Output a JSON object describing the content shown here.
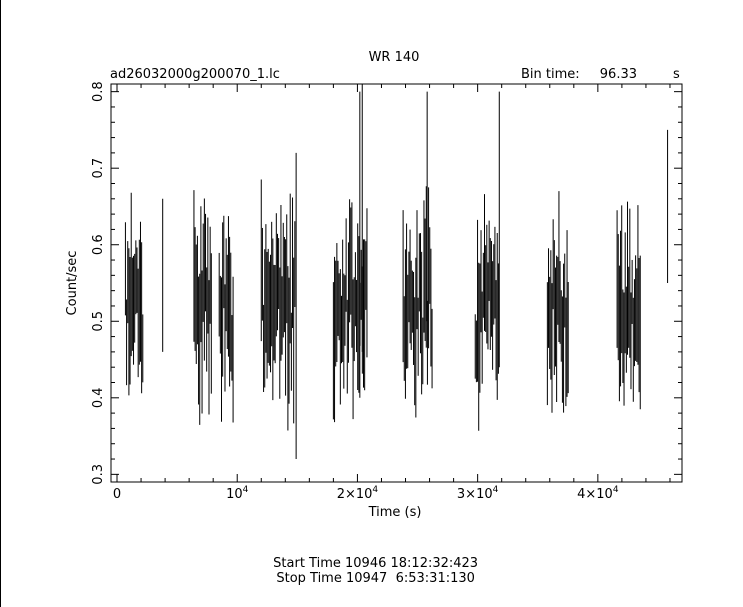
{
  "header": {
    "object": "WR 140",
    "filename": "ad26032000g200070_1.lc",
    "bin_label": "Bin time:",
    "bin_value": "96.33",
    "bin_unit": "s"
  },
  "footer": {
    "start": "Start Time 10946 18:12:32:423",
    "stop": "Stop Time 10947  6:53:31:130"
  },
  "chart_data": {
    "type": "scatter",
    "title": "WR 140",
    "xlabel": "Time (s)",
    "ylabel": "Count/sec",
    "xlim": [
      -500,
      47000
    ],
    "ylim": [
      0.29,
      0.81
    ],
    "x_ticks": [
      {
        "v": 0,
        "base": "0",
        "exp": ""
      },
      {
        "v": 10000,
        "base": "10",
        "exp": "4"
      },
      {
        "v": 20000,
        "base": "2×10",
        "exp": "4"
      },
      {
        "v": 30000,
        "base": "3×10",
        "exp": "4"
      },
      {
        "v": 40000,
        "base": "4×10",
        "exp": "4"
      }
    ],
    "y_ticks": [
      0.3,
      0.4,
      0.5,
      0.6,
      0.7,
      0.8
    ],
    "segments": [
      {
        "x0": 700,
        "x1": 2200,
        "seed": 11
      },
      {
        "x0": 6400,
        "x1": 7900,
        "seed": 23
      },
      {
        "x0": 8500,
        "x1": 9700,
        "seed": 31
      },
      {
        "x0": 12000,
        "x1": 14800,
        "seed": 47
      },
      {
        "x0": 18000,
        "x1": 20800,
        "seed": 53
      },
      {
        "x0": 23800,
        "x1": 26300,
        "seed": 67
      },
      {
        "x0": 29800,
        "x1": 31800,
        "seed": 71
      },
      {
        "x0": 35800,
        "x1": 37600,
        "seed": 83
      },
      {
        "x0": 41600,
        "x1": 43600,
        "seed": 97
      }
    ],
    "isolated_points": [
      {
        "x": 3800,
        "y": 0.56,
        "err": 0.1
      },
      {
        "x": 14900,
        "y": 0.52,
        "err": 0.2
      },
      {
        "x": 20200,
        "y": 0.6,
        "err": 0.2
      },
      {
        "x": 20400,
        "y": 0.64,
        "err": 0.18
      },
      {
        "x": 25800,
        "y": 0.65,
        "err": 0.15
      },
      {
        "x": 31800,
        "y": 0.62,
        "err": 0.18
      },
      {
        "x": 45800,
        "y": 0.65,
        "err": 0.1
      }
    ]
  }
}
